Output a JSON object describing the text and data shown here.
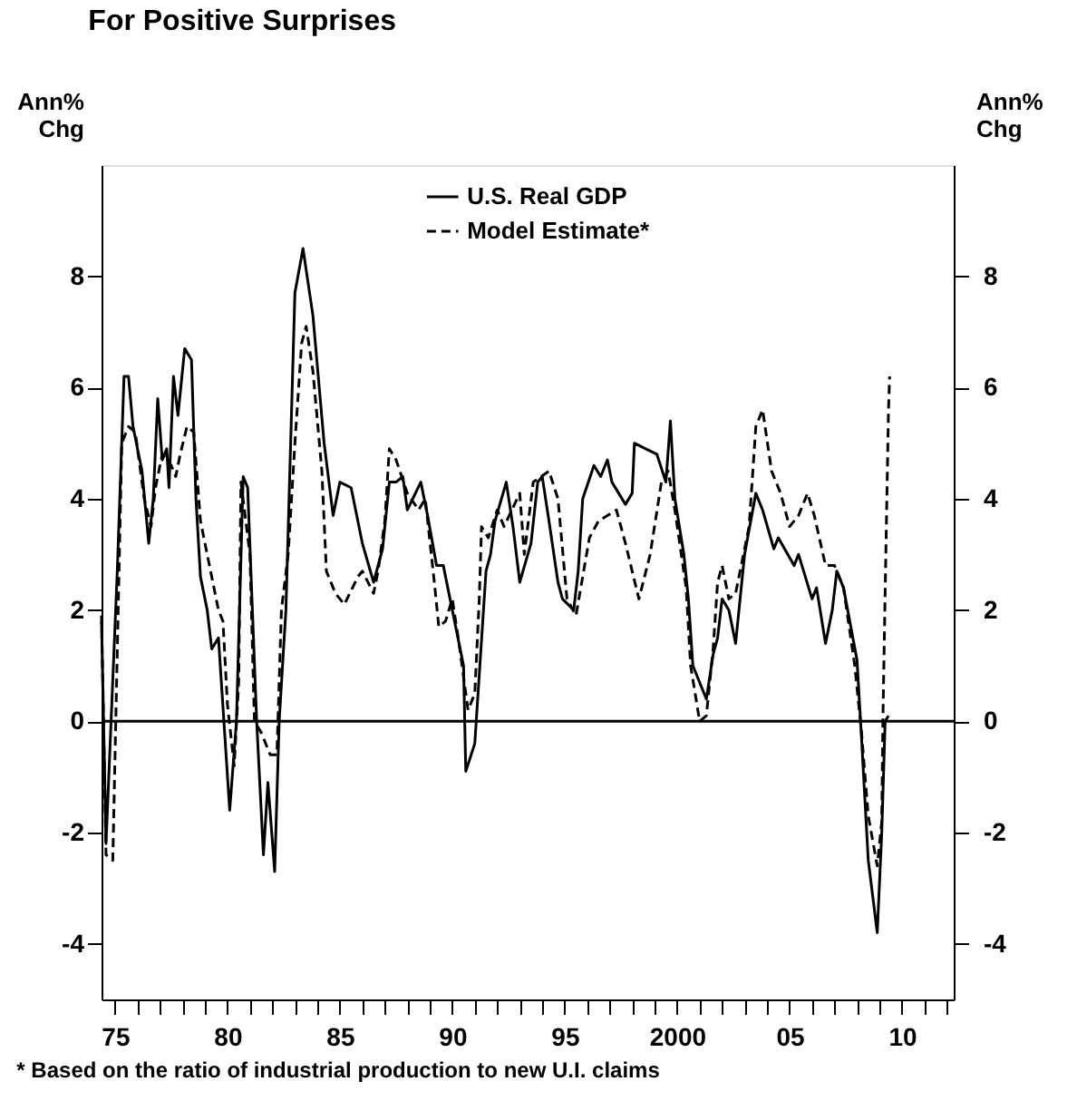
{
  "chart_data": {
    "type": "line",
    "title": "For Positive Surprises",
    "ylabel": "Ann% Chg",
    "y2label": "Ann% Chg",
    "annotations": [
      "* Based on the ratio of industrial production to new U.I. claims"
    ],
    "xlim": [
      1974.4,
      2012.3
    ],
    "ylim": [
      -5,
      10
    ],
    "y2lim": [
      -5,
      10
    ],
    "yticks": [
      -4,
      -2,
      0,
      2,
      4,
      6,
      8
    ],
    "y2ticks": [
      -4,
      -2,
      0,
      2,
      4,
      6,
      8
    ],
    "xticks": [
      {
        "value": 1975,
        "label": "75"
      },
      {
        "value": 1976,
        "label": null
      },
      {
        "value": 1977,
        "label": null
      },
      {
        "value": 1978,
        "label": null
      },
      {
        "value": 1979,
        "label": null
      },
      {
        "value": 1980,
        "label": "80"
      },
      {
        "value": 1981,
        "label": null
      },
      {
        "value": 1982,
        "label": null
      },
      {
        "value": 1983,
        "label": null
      },
      {
        "value": 1984,
        "label": null
      },
      {
        "value": 1985,
        "label": "85"
      },
      {
        "value": 1986,
        "label": null
      },
      {
        "value": 1987,
        "label": null
      },
      {
        "value": 1988,
        "label": null
      },
      {
        "value": 1989,
        "label": null
      },
      {
        "value": 1990,
        "label": "90"
      },
      {
        "value": 1991,
        "label": null
      },
      {
        "value": 1992,
        "label": null
      },
      {
        "value": 1993,
        "label": null
      },
      {
        "value": 1994,
        "label": null
      },
      {
        "value": 1995,
        "label": "95"
      },
      {
        "value": 1996,
        "label": null
      },
      {
        "value": 1997,
        "label": null
      },
      {
        "value": 1998,
        "label": null
      },
      {
        "value": 1999,
        "label": null
      },
      {
        "value": 2000,
        "label": "2000"
      },
      {
        "value": 2001,
        "label": null
      },
      {
        "value": 2002,
        "label": null
      },
      {
        "value": 2003,
        "label": null
      },
      {
        "value": 2004,
        "label": null
      },
      {
        "value": 2005,
        "label": "05"
      },
      {
        "value": 2006,
        "label": null
      },
      {
        "value": 2007,
        "label": null
      },
      {
        "value": 2008,
        "label": null
      },
      {
        "value": 2009,
        "label": null
      },
      {
        "value": 2010,
        "label": "10"
      },
      {
        "value": 2011,
        "label": null
      },
      {
        "value": 2012,
        "label": null
      }
    ],
    "grid": false,
    "legend": "top",
    "marker": "none",
    "ref_lines": [
      {
        "axis": "y",
        "value": 0,
        "label": null,
        "color": "#000000",
        "line_style": "solid"
      }
    ],
    "series": [
      {
        "name": "U.S. Real GDP",
        "color": "#000000",
        "line_style": "solid",
        "x": [
          1974.4,
          1974.6,
          1975.1,
          1975.4,
          1975.6,
          1975.8,
          1976.2,
          1976.5,
          1976.7,
          1976.9,
          1977.1,
          1977.3,
          1977.4,
          1977.6,
          1977.8,
          1978.1,
          1978.4,
          1978.6,
          1978.8,
          1979.1,
          1979.3,
          1979.6,
          1980.1,
          1980.4,
          1980.7,
          1980.9,
          1981.3,
          1981.6,
          1981.8,
          1982.1,
          1982.3,
          1982.6,
          1983.0,
          1983.36,
          1983.8,
          1984.3,
          1984.7,
          1985.0,
          1985.5,
          1986.0,
          1986.5,
          1986.9,
          1987.2,
          1987.5,
          1987.8,
          1988.0,
          1988.6,
          1988.9,
          1989.3,
          1989.6,
          1989.9,
          1990.5,
          1990.6,
          1991.0,
          1991.5,
          1991.7,
          1991.9,
          1992.4,
          1992.7,
          1993.0,
          1993.5,
          1993.8,
          1994.0,
          1994.3,
          1994.7,
          1994.9,
          1995.4,
          1995.6,
          1995.8,
          1996.3,
          1996.6,
          1996.9,
          1997.1,
          1997.7,
          1998.0,
          1998.1,
          1998.6,
          1999.1,
          1999.5,
          1999.7,
          1999.9,
          2000.3,
          2000.5,
          2000.7,
          2001.3,
          2001.6,
          2001.8,
          2002.0,
          2002.3,
          2002.6,
          2003.0,
          2003.5,
          2003.8,
          2004.3,
          2004.5,
          2005.2,
          2005.4,
          2006.0,
          2006.2,
          2006.6,
          2006.9,
          2007.1,
          2007.4,
          2008.0,
          2008.2,
          2008.5,
          2008.9,
          2009.1,
          2009.25,
          2009.4
        ],
        "values": [
          1.8,
          -2.2,
          2.7,
          6.2,
          6.2,
          5.3,
          4.5,
          3.2,
          4.0,
          5.8,
          4.7,
          4.9,
          4.2,
          6.2,
          5.5,
          6.7,
          6.5,
          4.0,
          2.6,
          2.0,
          1.3,
          1.5,
          -1.6,
          0.0,
          4.4,
          4.2,
          0.0,
          -2.4,
          -1.1,
          -2.7,
          0.0,
          2.0,
          7.7,
          8.5,
          7.3,
          5.0,
          3.7,
          4.3,
          4.2,
          3.2,
          2.5,
          3.1,
          4.3,
          4.3,
          4.4,
          3.8,
          4.3,
          3.7,
          2.8,
          2.8,
          2.2,
          1.0,
          -0.9,
          -0.4,
          2.7,
          3.0,
          3.6,
          4.3,
          3.5,
          2.5,
          3.2,
          4.3,
          4.4,
          3.6,
          2.5,
          2.2,
          2.0,
          2.7,
          4.0,
          4.6,
          4.4,
          4.7,
          4.3,
          3.9,
          4.1,
          5.0,
          4.9,
          4.8,
          4.3,
          5.4,
          4.0,
          3.0,
          2.2,
          1.0,
          0.4,
          1.2,
          1.5,
          2.2,
          2.0,
          1.4,
          3.0,
          4.1,
          3.8,
          3.1,
          3.3,
          2.8,
          3.0,
          2.2,
          2.4,
          1.4,
          2.0,
          2.7,
          2.4,
          1.1,
          -0.3,
          -2.5,
          -3.8,
          -2.0,
          0.0,
          0.1
        ]
      },
      {
        "name": "Model Estimate*",
        "color": "#000000",
        "line_style": "dashed",
        "x": [
          1974.4,
          1974.6,
          1974.9,
          1975.3,
          1975.6,
          1975.9,
          1976.3,
          1976.6,
          1976.8,
          1977.1,
          1977.5,
          1977.7,
          1977.9,
          1978.2,
          1978.5,
          1978.8,
          1979.6,
          1979.8,
          1980.0,
          1980.3,
          1980.5,
          1980.6,
          1981.0,
          1981.2,
          1981.5,
          1981.9,
          1982.2,
          1982.4,
          1982.7,
          1983.0,
          1983.3,
          1983.5,
          1983.8,
          1984.2,
          1984.4,
          1984.8,
          1985.2,
          1985.8,
          1986.0,
          1986.5,
          1986.7,
          1987.0,
          1987.2,
          1987.5,
          1988.0,
          1988.5,
          1988.8,
          1989.2,
          1989.4,
          1989.7,
          1990.0,
          1990.3,
          1990.5,
          1990.7,
          1991.0,
          1991.2,
          1991.3,
          1991.6,
          1992.0,
          1992.3,
          1993.0,
          1993.2,
          1993.6,
          1994.3,
          1994.7,
          1995.1,
          1995.5,
          1996.1,
          1996.5,
          1997.3,
          1997.7,
          1998.3,
          1998.8,
          1999.3,
          1999.6,
          1999.9,
          2000.4,
          2000.6,
          2001.0,
          2001.3,
          2001.6,
          2001.8,
          2002.0,
          2002.3,
          2002.6,
          2003.2,
          2003.5,
          2003.8,
          2004.2,
          2004.6,
          2005.0,
          2005.4,
          2005.8,
          2006.1,
          2006.6,
          2007.0,
          2007.4,
          2007.9,
          2008.2,
          2008.5,
          2008.9,
          2009.1,
          2009.15,
          2009.25,
          2009.4,
          2009.45
        ],
        "values": [
          1.9,
          -2.4,
          -2.5,
          5.0,
          5.3,
          5.2,
          4.0,
          3.5,
          4.2,
          4.8,
          4.6,
          4.4,
          4.8,
          5.3,
          5.2,
          3.6,
          2.0,
          1.8,
          0.3,
          -0.8,
          0.7,
          4.3,
          3.0,
          0.0,
          -0.2,
          -0.6,
          -0.6,
          2.0,
          3.0,
          5.0,
          6.8,
          7.1,
          6.3,
          4.5,
          2.7,
          2.3,
          2.1,
          2.6,
          2.7,
          2.3,
          2.7,
          3.6,
          4.9,
          4.7,
          4.1,
          3.8,
          4.0,
          2.5,
          1.7,
          1.8,
          2.2,
          1.4,
          0.8,
          0.2,
          0.5,
          2.2,
          3.5,
          3.3,
          3.8,
          3.5,
          4.1,
          3.0,
          4.3,
          4.5,
          4.0,
          2.2,
          1.9,
          3.3,
          3.6,
          3.8,
          3.2,
          2.2,
          3.0,
          4.3,
          4.5,
          3.8,
          2.4,
          1.0,
          0.0,
          0.1,
          1.3,
          2.5,
          2.8,
          2.2,
          2.3,
          3.5,
          5.3,
          5.6,
          4.5,
          4.1,
          3.5,
          3.7,
          4.1,
          3.7,
          2.8,
          2.8,
          2.4,
          1.0,
          -0.2,
          -1.7,
          -2.6,
          -1.8,
          0.0,
          2.3,
          5.6,
          6.2
        ]
      }
    ]
  }
}
